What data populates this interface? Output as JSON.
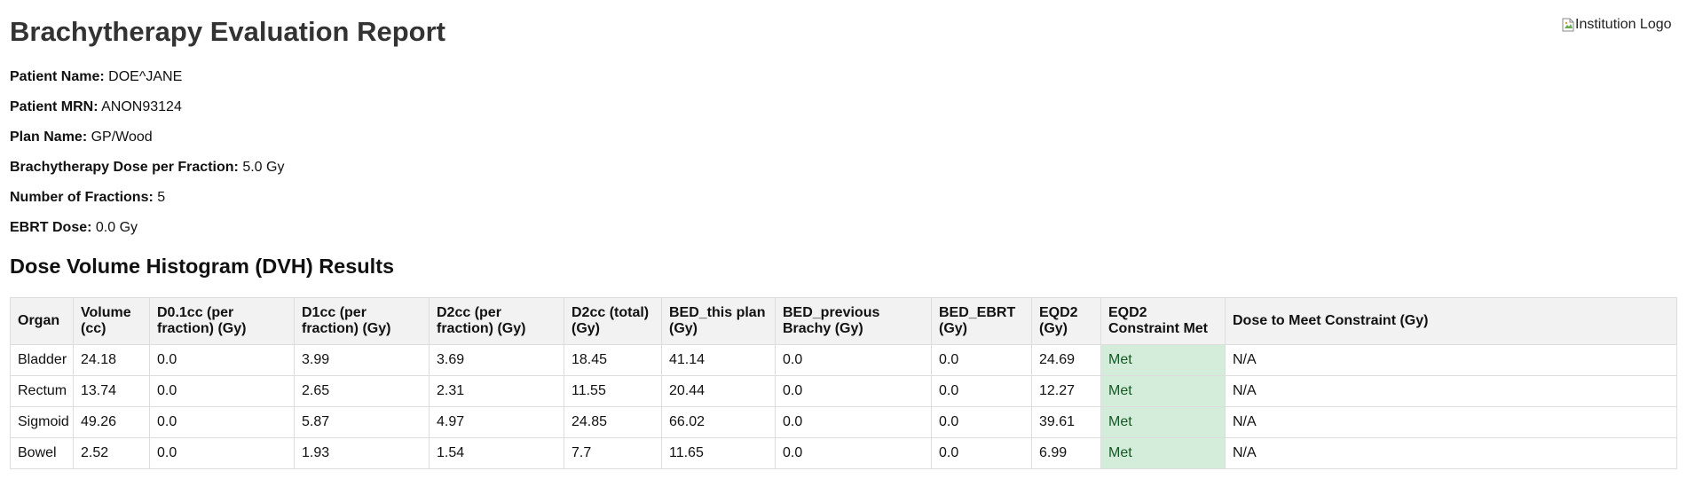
{
  "report": {
    "title": "Brachytherapy Evaluation Report",
    "logo_alt": "Institution Logo"
  },
  "patient_info": [
    {
      "label": "Patient Name:",
      "value": "DOE^JANE"
    },
    {
      "label": "Patient MRN:",
      "value": "ANON93124"
    },
    {
      "label": "Plan Name:",
      "value": "GP/Wood"
    },
    {
      "label": "Brachytherapy Dose per Fraction:",
      "value": "5.0 Gy"
    },
    {
      "label": "Number of Fractions:",
      "value": "5"
    },
    {
      "label": "EBRT Dose:",
      "value": "0.0 Gy"
    }
  ],
  "dvh": {
    "section_title": "Dose Volume Histogram (DVH) Results",
    "columns": [
      "Organ",
      "Volume (cc)",
      "D0.1cc (per fraction) (Gy)",
      "D1cc (per fraction) (Gy)",
      "D2cc (per fraction) (Gy)",
      "D2cc (total) (Gy)",
      "BED_this plan (Gy)",
      "BED_previous Brachy (Gy)",
      "BED_EBRT (Gy)",
      "EQD2 (Gy)",
      "EQD2 Constraint Met",
      "Dose to Meet Constraint (Gy)"
    ],
    "rows": [
      [
        "Bladder",
        "24.18",
        "0.0",
        "3.99",
        "3.69",
        "18.45",
        "41.14",
        "0.0",
        "0.0",
        "24.69",
        "Met",
        "N/A"
      ],
      [
        "Rectum",
        "13.74",
        "0.0",
        "2.65",
        "2.31",
        "11.55",
        "20.44",
        "0.0",
        "0.0",
        "12.27",
        "Met",
        "N/A"
      ],
      [
        "Sigmoid",
        "49.26",
        "0.0",
        "5.87",
        "4.97",
        "24.85",
        "66.02",
        "0.0",
        "0.0",
        "39.61",
        "Met",
        "N/A"
      ],
      [
        "Bowel",
        "2.52",
        "0.0",
        "1.93",
        "1.54",
        "7.7",
        "11.65",
        "0.0",
        "0.0",
        "6.99",
        "Met",
        "N/A"
      ]
    ]
  },
  "colors": {
    "constraint_met_bg": "#d4edda",
    "constraint_met_text": "#155724",
    "header_bg": "#f2f2f2"
  }
}
